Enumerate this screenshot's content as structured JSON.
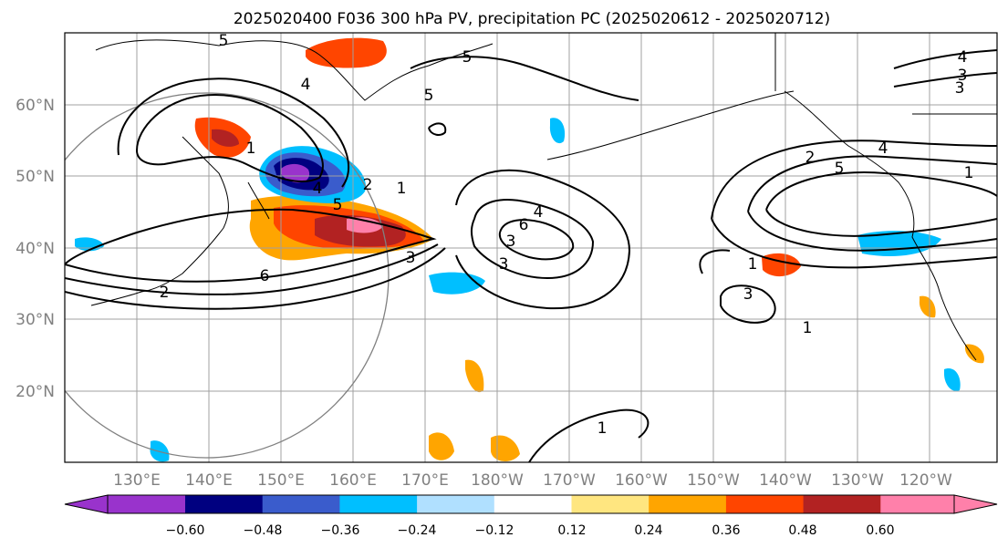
{
  "chart_data": {
    "type": "map-contour",
    "title": "2025020400 F036 300 hPa PV, precipitation PC (2025020612 - 2025020712)",
    "lon_ticks": [
      "130°E",
      "140°E",
      "150°E",
      "160°E",
      "170°E",
      "180°W",
      "170°W",
      "160°W",
      "150°W",
      "140°W",
      "130°W",
      "120°W"
    ],
    "lat_ticks": [
      "60°N",
      "50°N",
      "40°N",
      "30°N",
      "20°N"
    ],
    "lon_range": [
      120,
      250
    ],
    "lat_range": [
      10,
      70
    ],
    "grid": true,
    "colorbar": {
      "ticks": [
        "−0.60",
        "−0.48",
        "−0.36",
        "−0.24",
        "−0.12",
        "0.12",
        "0.24",
        "0.36",
        "0.48",
        "0.60"
      ],
      "colors": [
        "#9933cc",
        "#000080",
        "#3a5ccc",
        "#00bfff",
        "#b0e0ff",
        "#ffffff",
        "#ffe680",
        "#ffa500",
        "#ff4500",
        "#b22222",
        "#ff80aa"
      ],
      "extend": "both"
    },
    "contour_labels": [
      "5",
      "5",
      "4",
      "5",
      "4",
      "3",
      "3",
      "1",
      "2",
      "1",
      "5",
      "4",
      "6",
      "4",
      "3",
      "3",
      "6",
      "3",
      "1",
      "4",
      "2",
      "3",
      "1",
      "5",
      "1",
      "2",
      "1"
    ],
    "precip_pc_values": [
      -0.6,
      -0.48,
      -0.36,
      -0.24,
      -0.12,
      0.12,
      0.24,
      0.36,
      0.48,
      0.6
    ]
  }
}
